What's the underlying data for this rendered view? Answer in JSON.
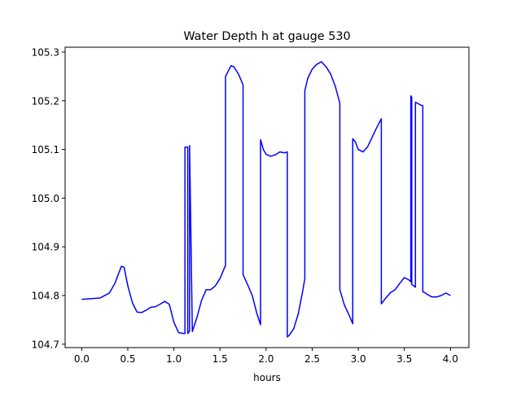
{
  "chart_data": {
    "type": "line",
    "title": "Water Depth h at gauge 530",
    "xlabel": "hours",
    "ylabel": "",
    "xlim": [
      -0.18,
      4.2
    ],
    "ylim": [
      104.693,
      105.31
    ],
    "xticks": [
      0.0,
      0.5,
      1.0,
      1.5,
      2.0,
      2.5,
      3.0,
      3.5,
      4.0
    ],
    "xtick_labels": [
      "0.0",
      "0.5",
      "1.0",
      "1.5",
      "2.0",
      "2.5",
      "3.0",
      "3.5",
      "4.0"
    ],
    "yticks": [
      104.7,
      104.8,
      104.9,
      105.0,
      105.1,
      105.2,
      105.3
    ],
    "ytick_labels": [
      "104.7",
      "104.8",
      "104.9",
      "105.0",
      "105.1",
      "105.2",
      "105.3"
    ],
    "grid": false,
    "series": [
      {
        "color": "#0000ff",
        "x": [
          0.0,
          0.2,
          0.3,
          0.36,
          0.4,
          0.43,
          0.46,
          0.5,
          0.55,
          0.6,
          0.65,
          0.7,
          0.75,
          0.8,
          0.85,
          0.9,
          0.95,
          1.0,
          1.05,
          1.1,
          1.12,
          1.12,
          1.15,
          1.15,
          1.17,
          1.17,
          1.2,
          1.25,
          1.3,
          1.35,
          1.4,
          1.45,
          1.5,
          1.56,
          1.56,
          1.6,
          1.62,
          1.65,
          1.7,
          1.75,
          1.75,
          1.8,
          1.85,
          1.9,
          1.94,
          1.94,
          1.97,
          2.0,
          2.05,
          2.1,
          2.15,
          2.2,
          2.23,
          2.23,
          2.25,
          2.3,
          2.35,
          2.4,
          2.42,
          2.42,
          2.45,
          2.5,
          2.55,
          2.6,
          2.65,
          2.7,
          2.75,
          2.8,
          2.8,
          2.85,
          2.9,
          2.94,
          2.94,
          2.97,
          3.0,
          3.05,
          3.1,
          3.15,
          3.2,
          3.25,
          3.25,
          3.3,
          3.35,
          3.4,
          3.45,
          3.5,
          3.55,
          3.57,
          3.57,
          3.58,
          3.58,
          3.6,
          3.62,
          3.62,
          3.65,
          3.68,
          3.7,
          3.7,
          3.72,
          3.75,
          3.8,
          3.85,
          3.9,
          3.95,
          4.0
        ],
        "y": [
          104.792,
          104.795,
          104.805,
          104.825,
          104.845,
          104.86,
          104.858,
          104.82,
          104.785,
          104.766,
          104.765,
          104.77,
          104.776,
          104.777,
          104.782,
          104.788,
          104.782,
          104.745,
          104.724,
          104.722,
          104.722,
          105.105,
          105.105,
          104.722,
          104.727,
          105.108,
          104.726,
          104.755,
          104.79,
          104.812,
          104.812,
          104.82,
          104.835,
          104.862,
          105.25,
          105.265,
          105.272,
          105.27,
          105.255,
          105.233,
          104.843,
          104.822,
          104.8,
          104.763,
          104.74,
          105.12,
          105.1,
          105.09,
          105.086,
          105.089,
          105.095,
          105.093,
          105.095,
          104.715,
          104.718,
          104.732,
          104.763,
          104.812,
          104.835,
          105.22,
          105.245,
          105.265,
          105.275,
          105.28,
          105.27,
          105.255,
          105.23,
          105.195,
          104.812,
          104.78,
          104.76,
          104.742,
          105.122,
          105.115,
          105.1,
          105.095,
          105.105,
          105.125,
          105.145,
          105.163,
          104.783,
          104.795,
          104.806,
          104.812,
          104.825,
          104.837,
          104.832,
          104.828,
          105.21,
          105.207,
          104.823,
          104.82,
          104.817,
          105.197,
          105.194,
          105.191,
          105.19,
          104.808,
          104.806,
          104.802,
          104.797,
          104.797,
          104.8,
          104.805,
          104.8
        ]
      }
    ]
  }
}
